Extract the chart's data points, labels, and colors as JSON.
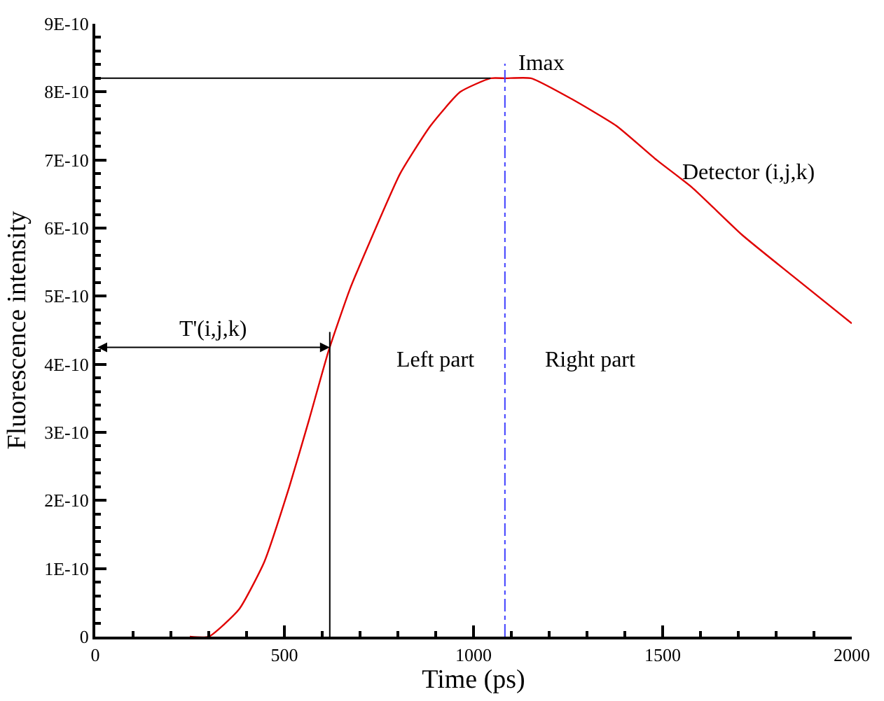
{
  "chart_data": {
    "type": "line",
    "xlabel": "Time (ps)",
    "ylabel": "Fluorescence intensity",
    "x": [
      250,
      300,
      380,
      447,
      513,
      566,
      617,
      673,
      726,
      806,
      886,
      965,
      1045,
      1085,
      1152,
      1258,
      1378,
      1484,
      1577,
      1710,
      1843,
      2000
    ],
    "series": [
      {
        "name": "Detector (i,j,k)",
        "color": "#e00000",
        "values": [
          0,
          0,
          4e-11,
          1.1e-10,
          2.2e-10,
          3.2e-10,
          4.2e-10,
          5.1e-10,
          5.8e-10,
          6.8e-10,
          7.5e-10,
          8e-10,
          8.2e-10,
          8.2e-10,
          8.2e-10,
          7.9e-10,
          7.5e-10,
          7e-10,
          6.6e-10,
          5.9e-10,
          5.3e-10,
          4.6e-10
        ]
      }
    ],
    "xlim": [
      0,
      2000
    ],
    "xticks": [
      0,
      500,
      1000,
      1500,
      2000
    ],
    "ylim": [
      0,
      9e-10
    ],
    "yticks": [
      0,
      {
        "value": 1e-10,
        "label": "1E-10"
      },
      {
        "value": 2e-10,
        "label": "2E-10"
      },
      {
        "value": 3e-10,
        "label": "3E-10"
      },
      {
        "value": 4e-10,
        "label": "4E-10"
      },
      {
        "value": 5e-10,
        "label": "5E-10"
      },
      {
        "value": 6e-10,
        "label": "6E-10"
      },
      {
        "value": 7e-10,
        "label": "7E-10"
      },
      {
        "value": 8e-10,
        "label": "8E-10"
      },
      {
        "value": 9e-10,
        "label": "9E-10"
      }
    ],
    "ref_lines": [
      {
        "axis": "x",
        "value": 1083,
        "label": "Imax",
        "color": "#4040ff",
        "line_style": "dashdot"
      },
      {
        "axis": "y",
        "value": 8.2e-10,
        "label": null,
        "color": "#000000",
        "line_style": "solid"
      },
      {
        "axis": "x",
        "value": 620,
        "label": null,
        "color": "#000000",
        "line_style": "solid"
      }
    ],
    "annotations": [
      "T'(i,j,k)",
      "Left part",
      "Right part"
    ],
    "legend": false,
    "marker": "none",
    "line_style": "solid"
  }
}
